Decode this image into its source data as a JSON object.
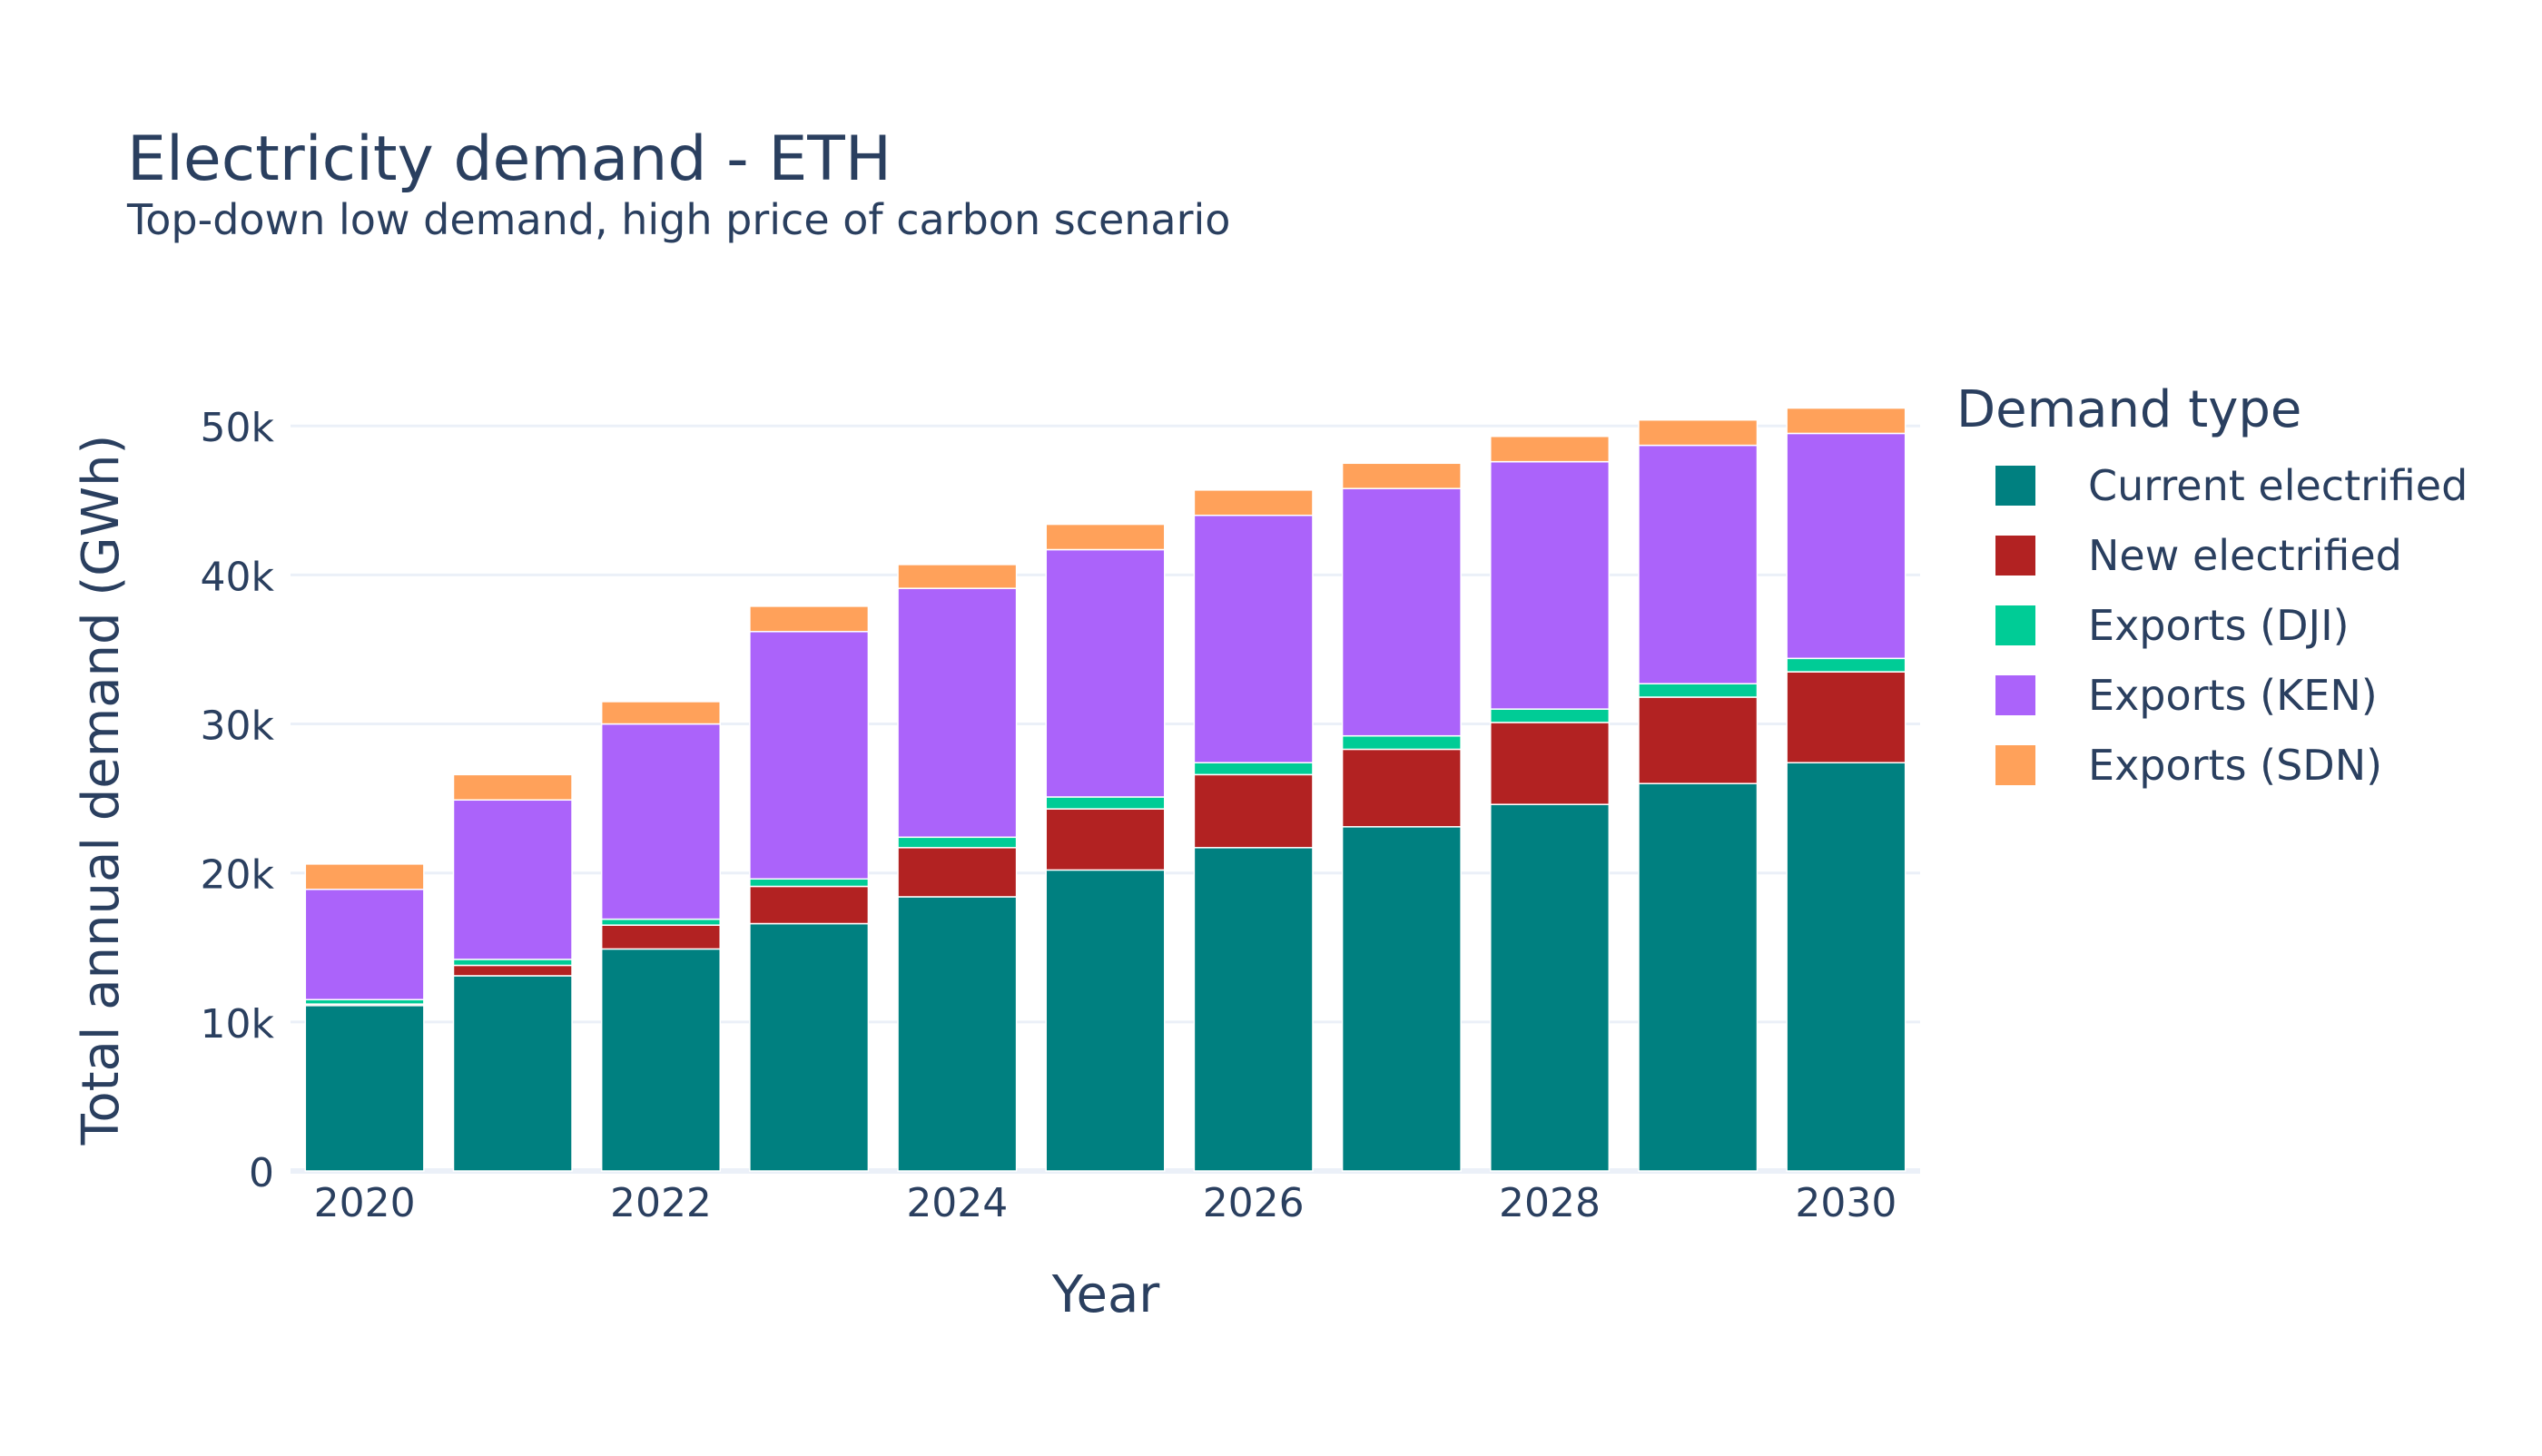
{
  "chart_data": {
    "type": "bar",
    "stacked": true,
    "title": "Electricity demand - ETH",
    "subtitle": "Top-down low demand, high price of carbon scenario",
    "xlabel": "Year",
    "ylabel": "Total annual demand (GWh)",
    "ylim": [
      0,
      53000
    ],
    "yticks": [
      0,
      10000,
      20000,
      30000,
      40000,
      50000
    ],
    "ytick_labels": [
      "0",
      "10k",
      "20k",
      "30k",
      "40k",
      "50k"
    ],
    "xtick_labels": [
      "2020",
      "2022",
      "2024",
      "2026",
      "2028",
      "2030"
    ],
    "categories": [
      "2020",
      "2021",
      "2022",
      "2023",
      "2024",
      "2025",
      "2026",
      "2027",
      "2028",
      "2029",
      "2030"
    ],
    "grid": true,
    "legend_title": "Demand type",
    "legend_position": "right",
    "series": [
      {
        "name": "Current electrified",
        "color": "#008080",
        "values": [
          11100,
          13100,
          14900,
          16600,
          18400,
          20200,
          21700,
          23100,
          24600,
          26000,
          27400
        ]
      },
      {
        "name": "New electrified",
        "color": "#B22222",
        "values": [
          100,
          700,
          1600,
          2500,
          3300,
          4100,
          4900,
          5200,
          5500,
          5800,
          6100
        ]
      },
      {
        "name": "Exports (DJI)",
        "color": "#00CC96",
        "values": [
          300,
          400,
          400,
          500,
          700,
          800,
          800,
          900,
          900,
          900,
          900
        ]
      },
      {
        "name": "Exports (KEN)",
        "color": "#AB63FA",
        "values": [
          7400,
          10700,
          13100,
          16600,
          16700,
          16600,
          16600,
          16600,
          16600,
          16000,
          15100
        ]
      },
      {
        "name": "Exports (SDN)",
        "color": "#FFA15A",
        "values": [
          1700,
          1700,
          1500,
          1700,
          1600,
          1700,
          1700,
          1700,
          1700,
          1700,
          1700
        ]
      }
    ]
  }
}
